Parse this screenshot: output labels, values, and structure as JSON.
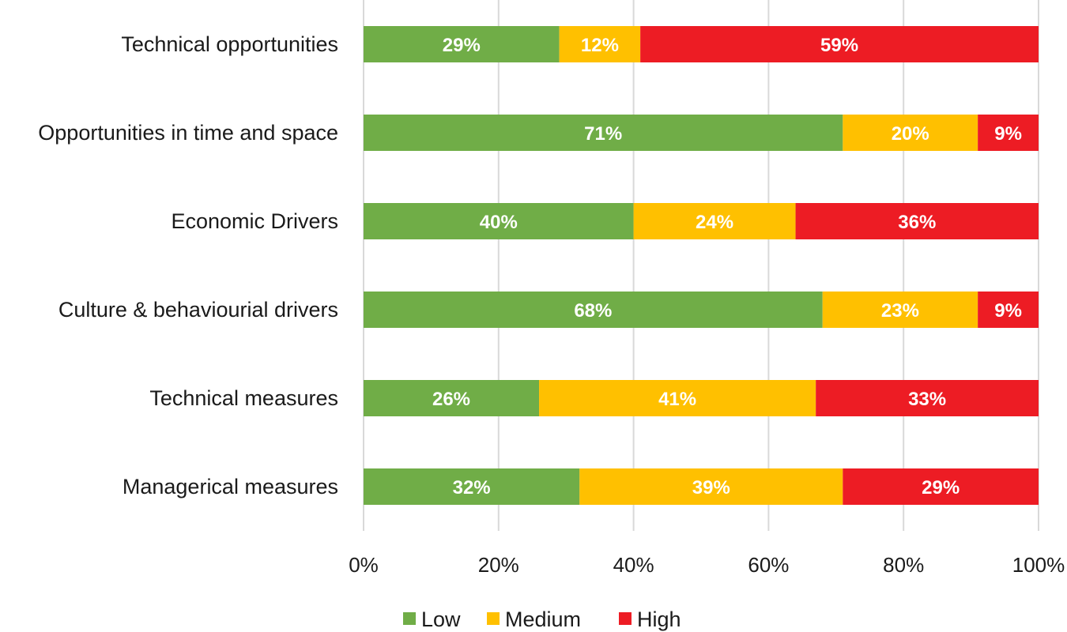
{
  "chart_data": {
    "type": "bar",
    "orientation": "horizontal",
    "stacked": "percent",
    "categories": [
      "Technical opportunities",
      "Opportunities in time and space",
      "Economic Drivers",
      "Culture & behaviourial drivers",
      "Technical measures",
      "Managerical measures"
    ],
    "series": [
      {
        "name": "Low",
        "color": "#70ad47",
        "values": [
          29,
          71,
          40,
          68,
          26,
          32
        ]
      },
      {
        "name": "Medium",
        "color": "#ffc000",
        "values": [
          12,
          20,
          24,
          23,
          41,
          39
        ]
      },
      {
        "name": "High",
        "color": "#ed1c24",
        "values": [
          59,
          9,
          36,
          9,
          33,
          29
        ]
      }
    ],
    "xlim": [
      0,
      100
    ],
    "x_ticks": [
      "0%",
      "20%",
      "40%",
      "60%",
      "80%",
      "100%"
    ],
    "grid": true,
    "legend_position": "bottom"
  }
}
